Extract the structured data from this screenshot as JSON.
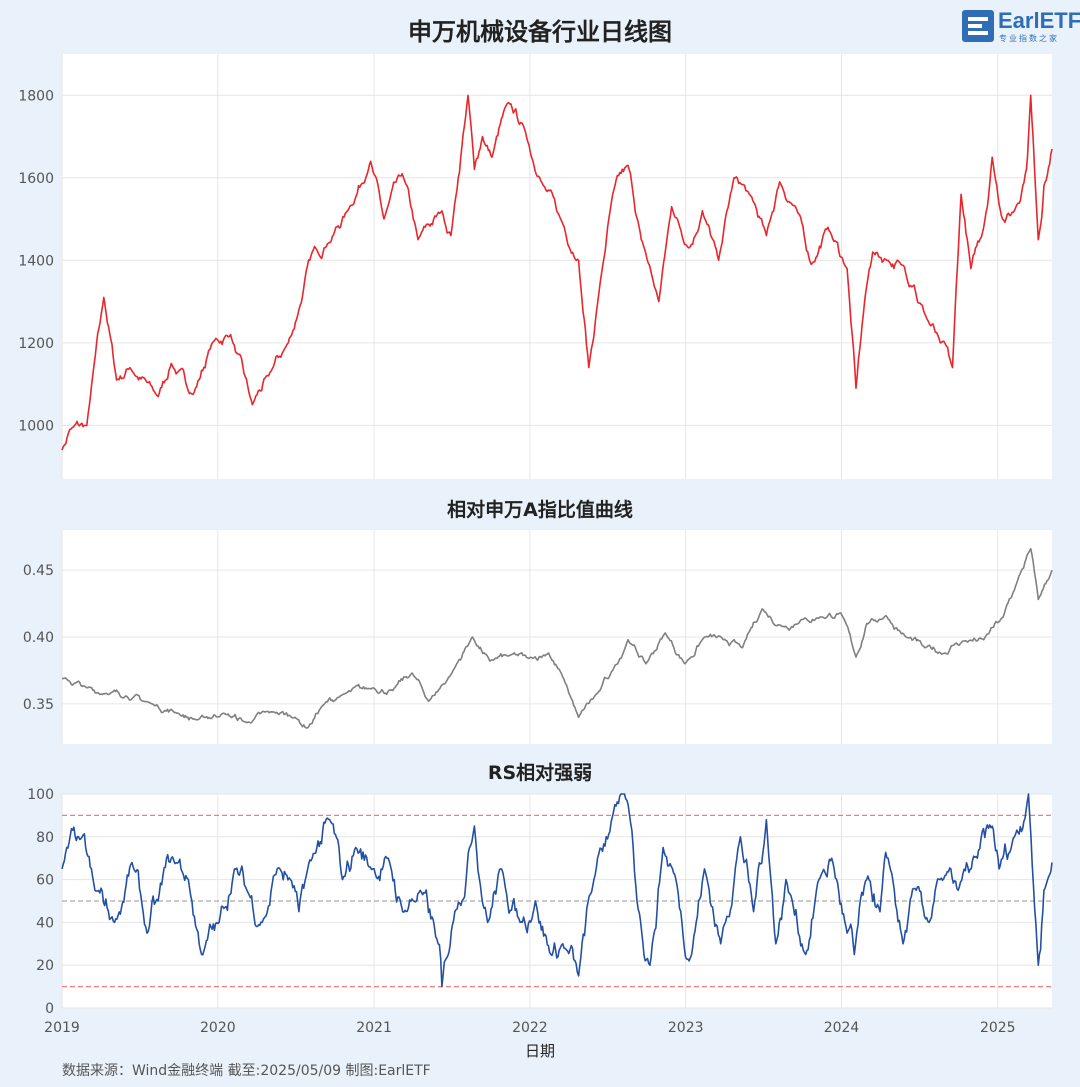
{
  "title": "申万机械设备行业日线图",
  "logo": {
    "text": "EarlETF",
    "sub": "专业指数之家"
  },
  "footer": "数据来源：Wind金融终端 截至:2025/05/09 制图:EarlETF",
  "colors": {
    "background": "#e9f2fb",
    "plot_bg": "#ffffff",
    "price": "#e8262b",
    "ratio": "#808080",
    "rs": "#2450a3",
    "ref_red": "#f08080",
    "ref_gray": "#aaaaaa",
    "grid": "#e6e6e6"
  },
  "chart_data": [
    {
      "type": "line",
      "title": "申万机械设备行业日线图",
      "series": [
        {
          "x": [
            "2019-01-02",
            "2019-01-20",
            "2019-03-01",
            "2019-04-10",
            "2019-05-10",
            "2019-06-10",
            "2019-08-15",
            "2019-09-15",
            "2019-11-05",
            "2019-12-20",
            "2020-02-01",
            "2020-03-23",
            "2020-04-30",
            "2020-06-15",
            "2020-07-10",
            "2020-08-10",
            "2020-09-15",
            "2020-11-01",
            "2020-12-25",
            "2021-01-25",
            "2021-03-09",
            "2021-04-15",
            "2021-06-10",
            "2021-07-01",
            "2021-08-10",
            "2021-08-25",
            "2021-09-13",
            "2021-10-05",
            "2021-11-10",
            "2021-12-20",
            "2022-01-25",
            "2022-03-15",
            "2022-04-26",
            "2022-05-20",
            "2022-06-10",
            "2022-07-15",
            "2022-08-20",
            "2022-09-20",
            "2022-10-31",
            "2022-11-30",
            "2023-01-10",
            "2023-02-10",
            "2023-03-20",
            "2023-04-25",
            "2023-05-31",
            "2023-07-10",
            "2023-08-10",
            "2023-09-20",
            "2023-10-23",
            "2023-12-01",
            "2024-01-15",
            "2024-02-05",
            "2024-02-25",
            "2024-03-15",
            "2024-04-20",
            "2024-05-20",
            "2024-06-20",
            "2024-07-15",
            "2024-08-20",
            "2024-09-18",
            "2024-10-08",
            "2024-10-31",
            "2024-11-30",
            "2024-12-20",
            "2025-01-13",
            "2025-02-10",
            "2025-03-10",
            "2025-03-20",
            "2025-04-07",
            "2025-04-20",
            "2025-05-09"
          ],
          "y": [
            940,
            990,
            1000,
            1310,
            1110,
            1140,
            1070,
            1150,
            1075,
            1200,
            1220,
            1050,
            1120,
            1200,
            1280,
            1420,
            1440,
            1520,
            1640,
            1500,
            1610,
            1450,
            1520,
            1460,
            1800,
            1620,
            1700,
            1650,
            1780,
            1720,
            1600,
            1500,
            1400,
            1140,
            1300,
            1560,
            1630,
            1450,
            1300,
            1530,
            1430,
            1520,
            1400,
            1600,
            1560,
            1460,
            1590,
            1520,
            1390,
            1480,
            1380,
            1090,
            1300,
            1420,
            1400,
            1390,
            1340,
            1270,
            1200,
            1140,
            1560,
            1380,
            1480,
            1650,
            1500,
            1520,
            1620,
            1800,
            1450,
            1580,
            1670
          ]
        }
      ],
      "ylim": [
        870,
        1900
      ],
      "yticks": [
        1000,
        1200,
        1400,
        1600,
        1800
      ]
    },
    {
      "type": "line",
      "title": "相对申万A指比值曲线",
      "series": [
        {
          "x": [
            "2019-01-02",
            "2019-03-01",
            "2019-04-15",
            "2019-06-01",
            "2019-08-01",
            "2019-10-01",
            "2019-11-15",
            "2020-01-15",
            "2020-03-10",
            "2020-05-10",
            "2020-07-01",
            "2020-07-30",
            "2020-09-01",
            "2020-10-15",
            "2020-12-31",
            "2021-02-15",
            "2021-04-01",
            "2021-05-10",
            "2021-07-01",
            "2021-08-20",
            "2021-09-30",
            "2021-11-15",
            "2021-12-31",
            "2022-02-15",
            "2022-03-20",
            "2022-04-26",
            "2022-06-15",
            "2022-07-15",
            "2022-08-20",
            "2022-10-01",
            "2022-11-15",
            "2022-12-31",
            "2023-02-15",
            "2023-03-31",
            "2023-05-15",
            "2023-06-30",
            "2023-08-15",
            "2023-09-30",
            "2023-11-15",
            "2023-12-31",
            "2024-02-05",
            "2024-03-01",
            "2024-04-15",
            "2024-06-01",
            "2024-07-15",
            "2024-09-01",
            "2024-09-24",
            "2024-10-15",
            "2024-11-30",
            "2025-01-15",
            "2025-02-15",
            "2025-03-20",
            "2025-04-07",
            "2025-05-09"
          ],
          "y": [
            0.369,
            0.362,
            0.358,
            0.356,
            0.35,
            0.343,
            0.338,
            0.343,
            0.336,
            0.344,
            0.34,
            0.332,
            0.348,
            0.356,
            0.362,
            0.36,
            0.373,
            0.352,
            0.372,
            0.4,
            0.382,
            0.386,
            0.384,
            0.388,
            0.37,
            0.34,
            0.36,
            0.375,
            0.398,
            0.38,
            0.403,
            0.38,
            0.4,
            0.398,
            0.392,
            0.421,
            0.408,
            0.413,
            0.415,
            0.418,
            0.385,
            0.41,
            0.416,
            0.4,
            0.392,
            0.388,
            0.395,
            0.397,
            0.398,
            0.415,
            0.44,
            0.466,
            0.428,
            0.45
          ]
        }
      ],
      "ylim": [
        0.32,
        0.48
      ],
      "yticks": [
        0.35,
        0.4,
        0.45
      ]
    },
    {
      "type": "line",
      "title": "RS相对强弱",
      "series": [
        {
          "x": [
            "2019-01-02",
            "2019-02-10",
            "2019-03-20",
            "2019-05-05",
            "2019-06-15",
            "2019-07-20",
            "2019-08-15",
            "2019-09-15",
            "2019-10-25",
            "2019-11-25",
            "2020-01-05",
            "2020-02-10",
            "2020-03-10",
            "2020-04-15",
            "2020-05-20",
            "2020-06-20",
            "2020-07-10",
            "2020-08-10",
            "2020-09-20",
            "2020-10-20",
            "2020-11-20",
            "2020-12-30",
            "2021-02-01",
            "2021-03-10",
            "2021-04-20",
            "2021-06-01",
            "2021-06-10",
            "2021-07-10",
            "2021-08-25",
            "2021-09-25",
            "2021-10-25",
            "2021-12-10",
            "2022-01-15",
            "2022-02-20",
            "2022-03-20",
            "2022-04-26",
            "2022-06-01",
            "2022-07-20",
            "2022-08-20",
            "2022-09-10",
            "2022-10-10",
            "2022-11-10",
            "2022-12-10",
            "2023-01-10",
            "2023-02-15",
            "2023-03-25",
            "2023-05-10",
            "2023-06-10",
            "2023-07-10",
            "2023-08-01",
            "2023-08-25",
            "2023-10-10",
            "2023-11-10",
            "2023-12-10",
            "2024-01-15",
            "2024-02-01",
            "2024-03-01",
            "2024-04-01",
            "2024-04-20",
            "2024-05-25",
            "2024-06-25",
            "2024-07-25",
            "2024-08-20",
            "2024-10-01",
            "2024-11-15",
            "2024-12-20",
            "2025-01-05",
            "2025-02-10",
            "2025-03-15",
            "2025-04-07",
            "2025-04-20",
            "2025-05-09"
          ],
          "y": [
            65,
            80,
            55,
            40,
            68,
            35,
            50,
            70,
            60,
            25,
            40,
            65,
            55,
            40,
            65,
            60,
            45,
            70,
            88,
            60,
            75,
            65,
            70,
            45,
            55,
            30,
            10,
            45,
            85,
            40,
            65,
            40,
            50,
            25,
            30,
            15,
            60,
            95,
            95,
            50,
            20,
            75,
            60,
            22,
            65,
            30,
            80,
            45,
            88,
            30,
            60,
            25,
            60,
            70,
            35,
            25,
            60,
            45,
            70,
            30,
            55,
            40,
            60,
            55,
            70,
            85,
            65,
            80,
            100,
            20,
            55,
            68
          ]
        }
      ],
      "ylim": [
        0,
        100
      ],
      "yticks": [
        0,
        20,
        40,
        60,
        80,
        100
      ],
      "reference_lines": [
        {
          "y": 90,
          "color": "red",
          "style": "dashed"
        },
        {
          "y": 50,
          "color": "gray",
          "style": "dashed"
        },
        {
          "y": 10,
          "color": "red",
          "style": "dashed"
        }
      ],
      "xlabel": "日期",
      "xticks": [
        "2019",
        "2020",
        "2021",
        "2022",
        "2023",
        "2024",
        "2025"
      ]
    }
  ]
}
